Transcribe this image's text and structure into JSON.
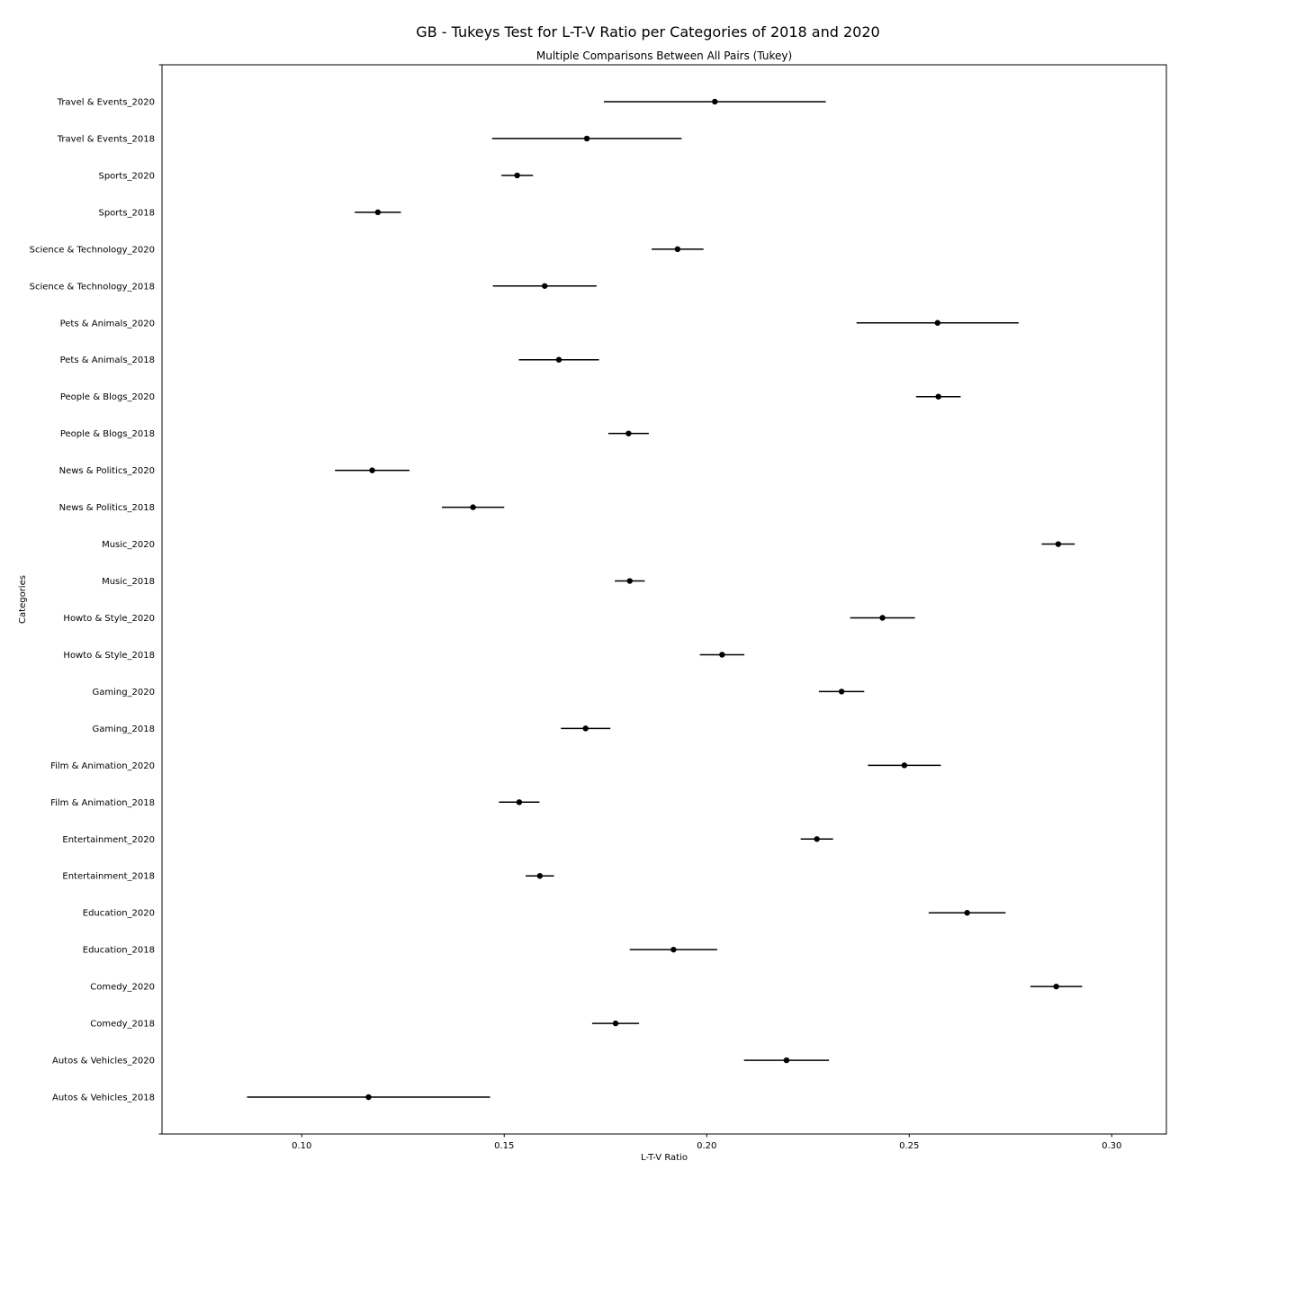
{
  "chart_data": {
    "type": "errorbar",
    "title": "GB - Tukeys Test for L-T-V Ratio per Categories of 2018 and 2020",
    "subtitle": "Multiple Comparisons Between All Pairs (Tukey)",
    "xlabel": "L-T-V Ratio",
    "ylabel": "Categories",
    "xlim": [
      0.0655,
      0.3135
    ],
    "xticks": [
      "0.10",
      "0.15",
      "0.20",
      "0.25",
      "0.30"
    ],
    "grid": false,
    "legend": "none",
    "point_color": "#000000",
    "categories": [
      "Autos & Vehicles_2018",
      "Autos & Vehicles_2020",
      "Comedy_2018",
      "Comedy_2020",
      "Education_2018",
      "Education_2020",
      "Entertainment_2018",
      "Entertainment_2020",
      "Film & Animation_2018",
      "Film & Animation_2020",
      "Gaming_2018",
      "Gaming_2020",
      "Howto & Style_2018",
      "Howto & Style_2020",
      "Music_2018",
      "Music_2020",
      "News & Politics_2018",
      "News & Politics_2020",
      "People & Blogs_2018",
      "People & Blogs_2020",
      "Pets & Animals_2018",
      "Pets & Animals_2020",
      "Science & Technology_2018",
      "Science & Technology_2020",
      "Sports_2018",
      "Sports_2020",
      "Travel & Events_2018",
      "Travel & Events_2020"
    ],
    "means": [
      0.1165,
      0.2197,
      0.1775,
      0.2863,
      0.1918,
      0.2643,
      0.1588,
      0.2272,
      0.1537,
      0.2488,
      0.1701,
      0.2333,
      0.2038,
      0.2434,
      0.181,
      0.2868,
      0.1423,
      0.1174,
      0.1807,
      0.2572,
      0.1635,
      0.257,
      0.16,
      0.1928,
      0.1188,
      0.1532,
      0.1704,
      0.202
    ],
    "lower": [
      0.0865,
      0.2092,
      0.1717,
      0.2799,
      0.181,
      0.2548,
      0.1553,
      0.2232,
      0.1487,
      0.2398,
      0.164,
      0.2277,
      0.1983,
      0.2354,
      0.1773,
      0.2827,
      0.1346,
      0.1082,
      0.1757,
      0.2517,
      0.1536,
      0.237,
      0.1472,
      0.1864,
      0.1131,
      0.1493,
      0.147,
      0.1746
    ],
    "upper": [
      0.1465,
      0.2302,
      0.1833,
      0.2927,
      0.2026,
      0.2738,
      0.1623,
      0.2312,
      0.1587,
      0.2578,
      0.1762,
      0.2389,
      0.2093,
      0.2514,
      0.1847,
      0.2909,
      0.15,
      0.1266,
      0.1857,
      0.2627,
      0.1734,
      0.277,
      0.1728,
      0.1992,
      0.1245,
      0.1571,
      0.1938,
      0.2294
    ]
  }
}
